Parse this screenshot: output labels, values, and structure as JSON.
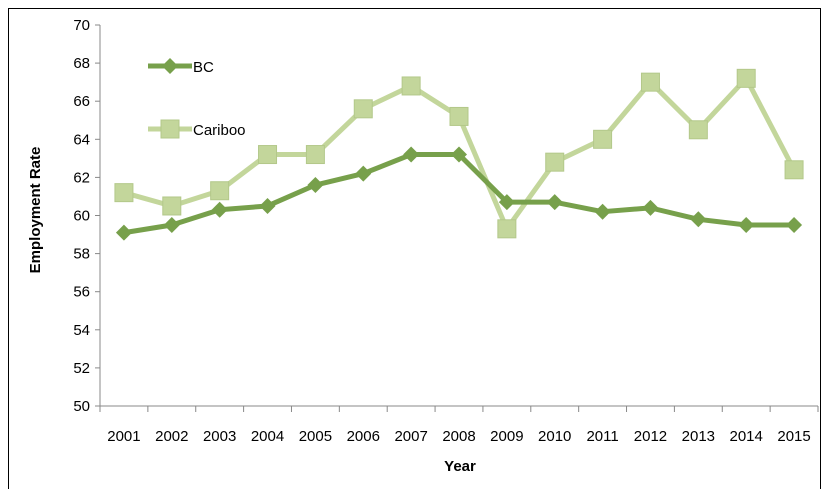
{
  "chart_data": {
    "type": "line",
    "title": "",
    "xlabel": "Year",
    "ylabel": "Employment Rate",
    "categories": [
      "2001",
      "2002",
      "2003",
      "2004",
      "2005",
      "2006",
      "2007",
      "2008",
      "2009",
      "2010",
      "2011",
      "2012",
      "2013",
      "2014",
      "2015"
    ],
    "ylim": [
      50,
      70
    ],
    "yticks": [
      "50",
      "52",
      "54",
      "56",
      "58",
      "60",
      "62",
      "64",
      "66",
      "68",
      "70"
    ],
    "grid": false,
    "legend": "inline-top-left",
    "series": [
      {
        "name": "BC",
        "color": "#77a04b",
        "marker": "diamond",
        "values": [
          59.1,
          59.5,
          60.3,
          60.5,
          61.6,
          62.2,
          63.2,
          63.2,
          60.7,
          60.7,
          60.2,
          60.4,
          59.8,
          59.5,
          59.5
        ]
      },
      {
        "name": "Cariboo",
        "color": "#c3d69b",
        "marker": "square",
        "values": [
          61.2,
          60.5,
          61.3,
          63.2,
          63.2,
          65.6,
          66.8,
          65.2,
          59.3,
          62.8,
          64.0,
          67.0,
          64.5,
          67.2,
          62.4
        ]
      }
    ]
  }
}
